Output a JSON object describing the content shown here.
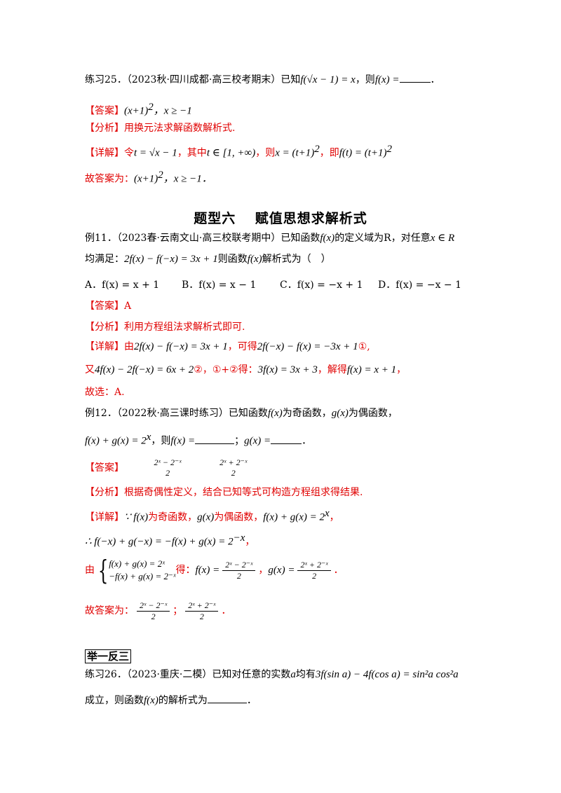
{
  "exercise25": {
    "label": "练习25．",
    "source": "（2023秋·四川成都·高三校考期末）",
    "q_pre": "已知",
    "q_eq": "f(√x − 1) = x",
    "q_mid": "，则",
    "q_ask": "f(x) =",
    "q_end": "．",
    "ans_tag": "【答案】",
    "ans_val": "(x+1)",
    "ans_cond": "，x ≥ −1",
    "ana_tag": "【分析】",
    "ana_text": "用换元法求解函数解析式.",
    "det_tag": "【详解】",
    "det_1": "令",
    "det_t": "t = √x − 1",
    "det_2": "，其中",
    "det_range": "t ∈ [1, +∞)",
    "det_3": "，则",
    "det_x": "x = (t+1)",
    "det_4": "，即",
    "det_ft": "f(t) = (t+1)",
    "conc": "故答案为：",
    "conc_val": "(x+1)",
    "conc_cond": "，x ≥ −1．"
  },
  "section": {
    "title": "题型六　 赋值思想求解析式"
  },
  "example11": {
    "label": "例11．",
    "source": "（2023春·云南文山·高三校联考期中）",
    "q1a": "已知函数",
    "q1b": "f(x)",
    "q1c": "的定义域为R，对任意",
    "q1d": "x ∈ R",
    "q2a": "均满足：",
    "q2b": "2f(x) − f(−x) = 3x + 1",
    "q2c": "则函数",
    "q2d": "f(x)",
    "q2e": "解析式为（　）",
    "opt_a": "A．f(x) = x + 1",
    "opt_b": "B．f(x) = x − 1",
    "opt_c": "C．f(x) = −x + 1",
    "opt_d": "D．f(x) = −x − 1",
    "ans_tag": "【答案】",
    "ans_val": "A",
    "ana_tag": "【分析】",
    "ana_text": "利用方程组法求解析式即可.",
    "det_tag": "【详解】",
    "d1a": "由",
    "d1b": "2f(x) − f(−x) = 3x + 1",
    "d1c": "，可得",
    "d1d": "2f(−x) − f(x) = −3x + 1",
    "d1e": "①,",
    "d2a": "又",
    "d2b": "4f(x) − 2f(−x) = 6x + 2",
    "d2c": "②，①+②得：",
    "d2d": "3f(x) = 3x + 3",
    "d2e": "，解得",
    "d2f": "f(x) = x + 1",
    "d2g": "，",
    "conc": "故选：A."
  },
  "example12": {
    "label": "例12．",
    "source": "（2022秋·高三课时练习）",
    "q1a": "已知函数",
    "q1b": "f(x)",
    "q1c": "为奇函数，",
    "q1d": "g(x)",
    "q1e": "为偶函数，",
    "q2a": "f(x) + g(x) = 2",
    "q2b": "，则",
    "q2c": "f(x) =",
    "q2d": "；",
    "q2e": "g(x) =",
    "q2f": "．",
    "ans_tag": "【答案】",
    "ans_f_num": "2ˣ − 2⁻ˣ",
    "ans_g_num": "2ˣ + 2⁻ˣ",
    "den": "2",
    "ana_tag": "【分析】",
    "ana_text": "根据奇偶性定义，结合已知等式可构造方程组求得结果.",
    "det_tag": "【详解】",
    "d1a": "∵ f(x)",
    "d1b": "为奇函数，",
    "d1c": "g(x)",
    "d1d": "为偶函数，",
    "d1e": "f(x) + g(x) = 2",
    "d1f": "，",
    "d2": "∴ f(−x) + g(−x) = −f(x) + g(x) = 2",
    "d2f": "，",
    "d3a": "由",
    "sys1": "f(x) + g(x) = 2ˣ",
    "sys2": "−f(x) + g(x) = 2⁻ˣ",
    "d3b": "得：",
    "d3c": "f(x) =",
    "d3d": "，",
    "d3e": "g(x) =",
    "d3f": "．",
    "conc": "故答案为：",
    "conc_sep": "；",
    "conc_end": "．"
  },
  "boxed": {
    "label": "举一反三"
  },
  "exercise26": {
    "label": "练习26．",
    "source": "（2023·重庆·二模）",
    "q1a": "已知对任意的实数",
    "q1b": "a",
    "q1c": "均有",
    "q1d": "3f(sin a) − 4f(cos a) = sin²a cos²a",
    "q2a": "成立，则函数",
    "q2b": "f(x)",
    "q2c": "的解析式为",
    "q2d": "．"
  }
}
